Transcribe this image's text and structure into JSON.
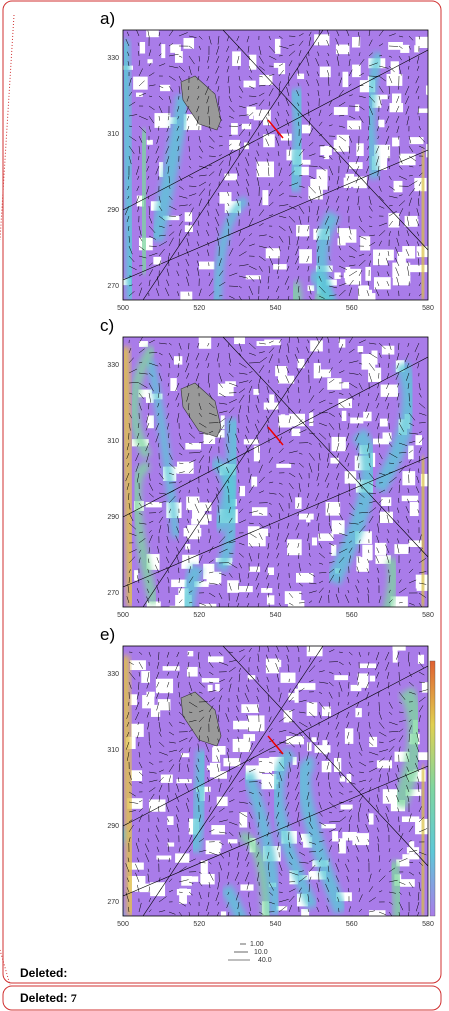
{
  "panels": [
    {
      "label": "a)",
      "yticks": [
        "330",
        "310",
        "290",
        "270"
      ],
      "xticks": [
        "500",
        "520",
        "540",
        "560",
        "580"
      ]
    },
    {
      "label": "c)",
      "yticks": [
        "330",
        "310",
        "290",
        "270"
      ],
      "xticks": [
        "500",
        "520",
        "540",
        "560",
        "580"
      ]
    },
    {
      "label": "e)",
      "yticks": [
        "330",
        "310",
        "290",
        "270"
      ],
      "xticks": [
        "500",
        "520",
        "540",
        "560",
        "580"
      ]
    }
  ],
  "legend": [
    "1.00",
    "10.0",
    "40.0"
  ],
  "comments": [
    {
      "label": "Deleted:"
    },
    {
      "label": "Deleted:",
      "value": "7"
    }
  ]
}
